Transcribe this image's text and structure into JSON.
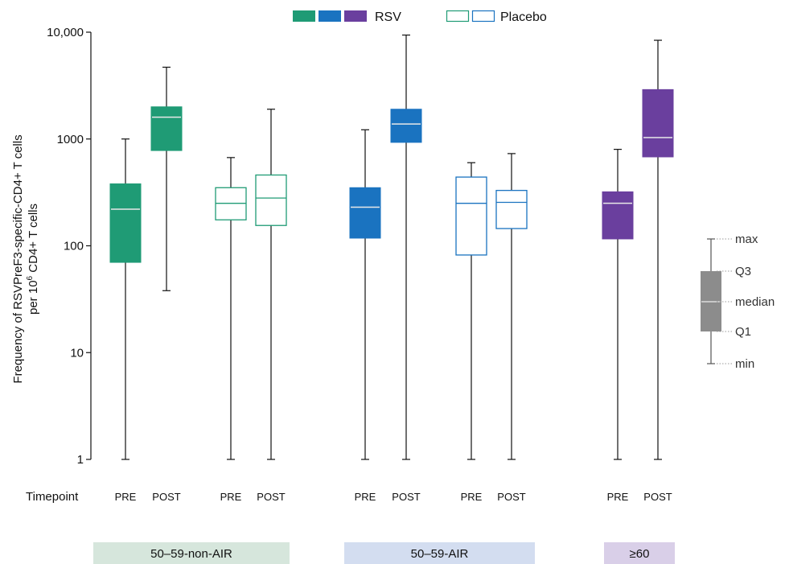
{
  "chart_data": {
    "type": "box",
    "ylabel_line1": "Frequency of RSVPreF3-specific-CD4+ T cells",
    "ylabel_line2_pre": "per 10",
    "ylabel_line2_sup": "6",
    "ylabel_line2_post": " CD4+ T cells",
    "yscale": "log",
    "ylim": [
      1,
      10000
    ],
    "yticks": [
      {
        "value": 1,
        "label": "1"
      },
      {
        "value": 10,
        "label": "10"
      },
      {
        "value": 100,
        "label": "100"
      },
      {
        "value": 1000,
        "label": "1000"
      },
      {
        "value": 10000,
        "label": "10,000"
      }
    ],
    "legend": [
      {
        "label": "RSV",
        "colors": [
          "#1f9b75",
          "#1a73c0",
          "#6a3f9e"
        ],
        "filled": true
      },
      {
        "label": "Placebo",
        "colors": [
          "#1f9b75",
          "#1a73c0"
        ],
        "filled": false
      }
    ],
    "timepoint_title": "Timepoint",
    "groups": [
      {
        "label": "50–59-non-AIR",
        "band_color": "#d6e6dc"
      },
      {
        "label": "50–59-AIR",
        "band_color": "#d3ddf0"
      },
      {
        "label": "≥60",
        "band_color": "#d9cfe8"
      }
    ],
    "boxes": [
      {
        "group": "50–59-non-AIR",
        "arm": "RSV",
        "timepoint": "PRE",
        "color": "#1f9b75",
        "filled": true,
        "min": 1,
        "q1": 70,
        "median": 220,
        "q3": 380,
        "max": 1000
      },
      {
        "group": "50–59-non-AIR",
        "arm": "RSV",
        "timepoint": "POST",
        "color": "#1f9b75",
        "filled": true,
        "min": 38,
        "q1": 780,
        "median": 1600,
        "q3": 2000,
        "max": 4700
      },
      {
        "group": "50–59-non-AIR",
        "arm": "Placebo",
        "timepoint": "PRE",
        "color": "#1f9b75",
        "filled": false,
        "min": 1,
        "q1": 175,
        "median": 250,
        "q3": 350,
        "max": 670
      },
      {
        "group": "50–59-non-AIR",
        "arm": "Placebo",
        "timepoint": "POST",
        "color": "#1f9b75",
        "filled": false,
        "min": 1,
        "q1": 155,
        "median": 280,
        "q3": 460,
        "max": 1900
      },
      {
        "group": "50–59-AIR",
        "arm": "RSV",
        "timepoint": "PRE",
        "color": "#1a73c0",
        "filled": true,
        "min": 1,
        "q1": 118,
        "median": 230,
        "q3": 350,
        "max": 1220
      },
      {
        "group": "50–59-AIR",
        "arm": "RSV",
        "timepoint": "POST",
        "color": "#1a73c0",
        "filled": true,
        "min": 1,
        "q1": 930,
        "median": 1380,
        "q3": 1900,
        "max": 9400
      },
      {
        "group": "50–59-AIR",
        "arm": "Placebo",
        "timepoint": "PRE",
        "color": "#1a73c0",
        "filled": false,
        "min": 1,
        "q1": 82,
        "median": 250,
        "q3": 440,
        "max": 600
      },
      {
        "group": "50–59-AIR",
        "arm": "Placebo",
        "timepoint": "POST",
        "color": "#1a73c0",
        "filled": false,
        "min": 1,
        "q1": 145,
        "median": 255,
        "q3": 330,
        "max": 730
      },
      {
        "group": "≥60",
        "arm": "RSV",
        "timepoint": "PRE",
        "color": "#6a3f9e",
        "filled": true,
        "min": 1,
        "q1": 116,
        "median": 250,
        "q3": 320,
        "max": 800
      },
      {
        "group": "≥60",
        "arm": "RSV",
        "timepoint": "POST",
        "color": "#6a3f9e",
        "filled": true,
        "min": 1,
        "q1": 680,
        "median": 1030,
        "q3": 2900,
        "max": 8400
      }
    ],
    "key": {
      "color": "#8c8c8c",
      "labels": {
        "max": "max",
        "q3": "Q3",
        "median": "median",
        "q1": "Q1",
        "min": "min"
      }
    }
  }
}
